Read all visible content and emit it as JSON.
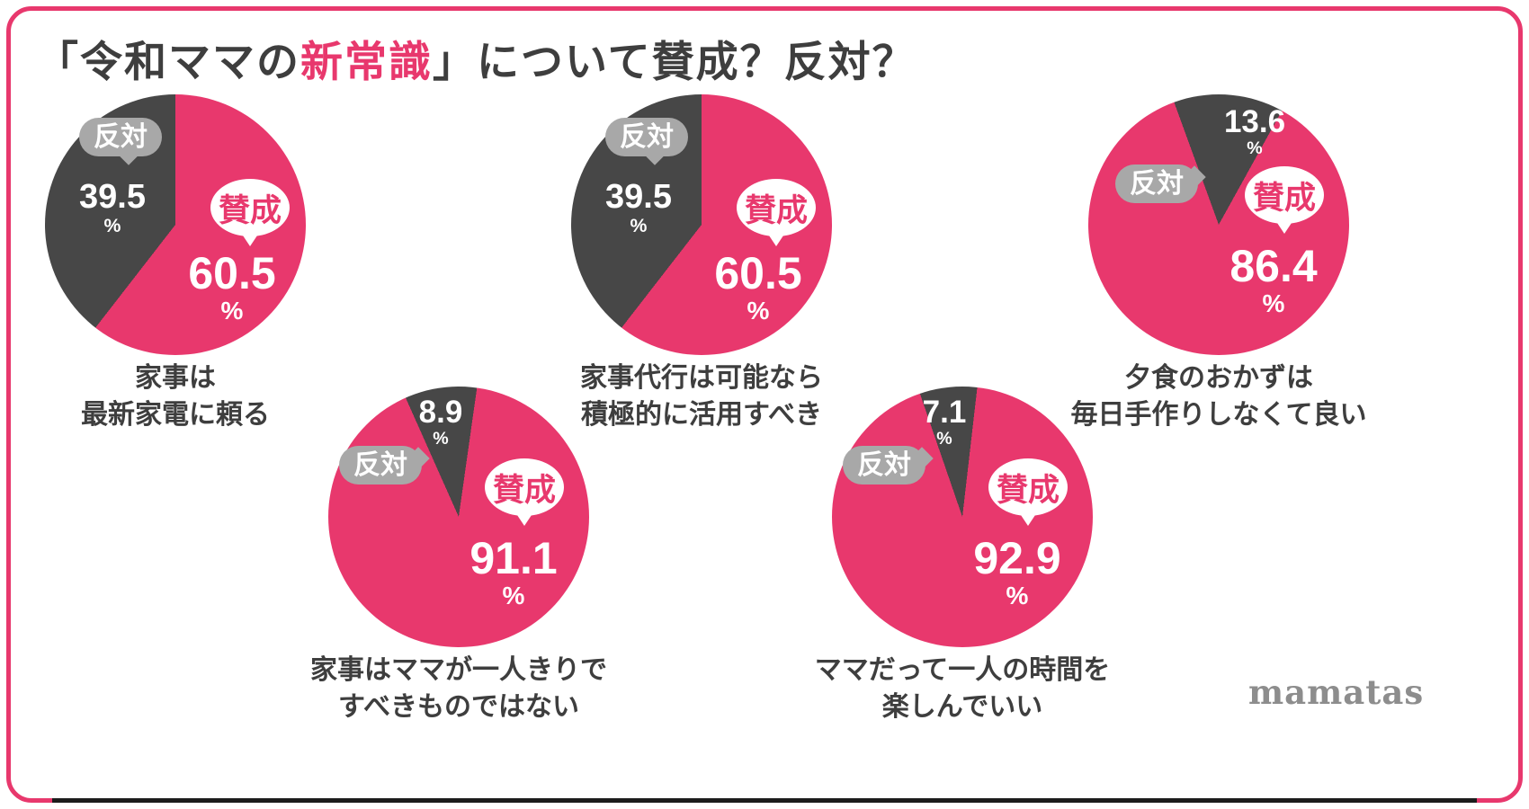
{
  "title": {
    "prefix": "「令和ママの",
    "highlight": "新常識",
    "suffix": "」について賛成？反対？"
  },
  "legend": {
    "agree": "賛成",
    "disagree": "反対"
  },
  "unit": "%",
  "brand": "mamatas",
  "colors": {
    "pink": "#e8386d",
    "dark": "#474747",
    "bubble_gray": "#a8a8a8"
  },
  "chart_data": [
    {
      "type": "pie",
      "caption_lines": [
        "家事は",
        "最新家電に頼る"
      ],
      "labels": [
        "賛成",
        "反対"
      ],
      "agree": 60.5,
      "disagree": 39.5,
      "unit": "%"
    },
    {
      "type": "pie",
      "caption_lines": [
        "家事代行は可能なら",
        "積極的に活用すべき"
      ],
      "labels": [
        "賛成",
        "反対"
      ],
      "agree": 60.5,
      "disagree": 39.5,
      "unit": "%"
    },
    {
      "type": "pie",
      "caption_lines": [
        "夕食のおかずは",
        "毎日手作りしなくて良い"
      ],
      "labels": [
        "賛成",
        "反対"
      ],
      "agree": 86.4,
      "disagree": 13.6,
      "unit": "%"
    },
    {
      "type": "pie",
      "caption_lines": [
        "家事はママが一人きりで",
        "すべきものではない"
      ],
      "labels": [
        "賛成",
        "反対"
      ],
      "agree": 91.1,
      "disagree": 8.9,
      "unit": "%"
    },
    {
      "type": "pie",
      "caption_lines": [
        "ママだって一人の時間を",
        "楽しんでいい"
      ],
      "labels": [
        "賛成",
        "反対"
      ],
      "agree": 92.9,
      "disagree": 7.1,
      "unit": "%"
    }
  ]
}
